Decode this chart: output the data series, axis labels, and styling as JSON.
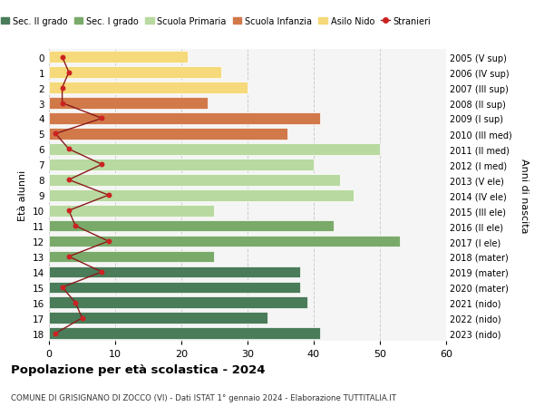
{
  "ages": [
    18,
    17,
    16,
    15,
    14,
    13,
    12,
    11,
    10,
    9,
    8,
    7,
    6,
    5,
    4,
    3,
    2,
    1,
    0
  ],
  "right_labels": [
    "2005 (V sup)",
    "2006 (IV sup)",
    "2007 (III sup)",
    "2008 (II sup)",
    "2009 (I sup)",
    "2010 (III med)",
    "2011 (II med)",
    "2012 (I med)",
    "2013 (V ele)",
    "2014 (IV ele)",
    "2015 (III ele)",
    "2016 (II ele)",
    "2017 (I ele)",
    "2018 (mater)",
    "2019 (mater)",
    "2020 (mater)",
    "2021 (nido)",
    "2022 (nido)",
    "2023 (nido)"
  ],
  "bar_values": [
    41,
    33,
    39,
    38,
    38,
    25,
    53,
    43,
    25,
    46,
    44,
    40,
    50,
    36,
    41,
    24,
    30,
    26,
    21
  ],
  "bar_colors": [
    "#4a7c59",
    "#4a7c59",
    "#4a7c59",
    "#4a7c59",
    "#4a7c59",
    "#7aaa6a",
    "#7aaa6a",
    "#7aaa6a",
    "#b8d9a0",
    "#b8d9a0",
    "#b8d9a0",
    "#b8d9a0",
    "#b8d9a0",
    "#d2794a",
    "#d2794a",
    "#d2794a",
    "#f5d97a",
    "#f5d97a",
    "#f5d97a"
  ],
  "stranieri_values": [
    1,
    5,
    4,
    2,
    8,
    3,
    9,
    4,
    3,
    9,
    3,
    8,
    3,
    1,
    8,
    2,
    2,
    3,
    2
  ],
  "legend_labels": [
    "Sec. II grado",
    "Sec. I grado",
    "Scuola Primaria",
    "Scuola Infanzia",
    "Asilo Nido",
    "Stranieri"
  ],
  "legend_colors": [
    "#4a7c59",
    "#7aaa6a",
    "#b8d9a0",
    "#d2794a",
    "#f5d97a",
    "#b22222"
  ],
  "title": "Popolazione per età scolastica - 2024",
  "subtitle": "COMUNE DI GRISIGNANO DI ZOCCO (VI) - Dati ISTAT 1° gennaio 2024 - Elaborazione TUTTITALIA.IT",
  "ylabel_left": "Età alunni",
  "ylabel_right": "Anni di nascita",
  "xlim": [
    0,
    60
  ],
  "background_color": "#ffffff",
  "plot_bg_color": "#f5f5f5"
}
